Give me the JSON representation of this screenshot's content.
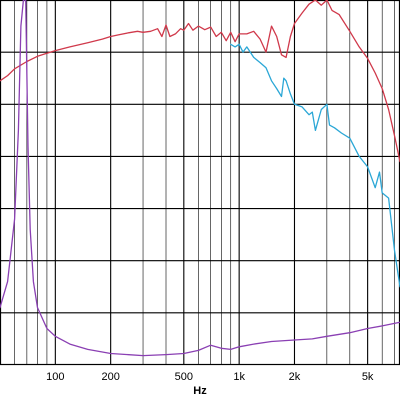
{
  "chart_data": {
    "type": "line",
    "title": "",
    "xlabel": "Hz",
    "ylabel": "",
    "x_scale": "log",
    "xlim": [
      50,
      7500
    ],
    "ylim": [
      0,
      7
    ],
    "grid": true,
    "x_ticks": [
      {
        "value": 100,
        "label": "100"
      },
      {
        "value": 200,
        "label": "200"
      },
      {
        "value": 500,
        "label": "500"
      },
      {
        "value": 1000,
        "label": "1k"
      },
      {
        "value": 2000,
        "label": "2k"
      },
      {
        "value": 5000,
        "label": "5k"
      }
    ],
    "minor_x_grid": [
      60,
      70,
      80,
      90,
      300,
      400,
      600,
      700,
      800,
      900,
      3000,
      4000,
      6000,
      7000
    ],
    "y_grid": [
      1,
      2,
      3,
      4,
      5,
      6
    ],
    "series": [
      {
        "color": "#d0394b",
        "points": [
          [
            50,
            5.45
          ],
          [
            55,
            5.55
          ],
          [
            60,
            5.68
          ],
          [
            70,
            5.82
          ],
          [
            80,
            5.92
          ],
          [
            90,
            5.98
          ],
          [
            100,
            6.03
          ],
          [
            120,
            6.1
          ],
          [
            150,
            6.18
          ],
          [
            180,
            6.25
          ],
          [
            200,
            6.3
          ],
          [
            220,
            6.33
          ],
          [
            250,
            6.37
          ],
          [
            280,
            6.4
          ],
          [
            300,
            6.38
          ],
          [
            330,
            6.4
          ],
          [
            360,
            6.45
          ],
          [
            380,
            6.3
          ],
          [
            400,
            6.52
          ],
          [
            420,
            6.3
          ],
          [
            450,
            6.35
          ],
          [
            480,
            6.45
          ],
          [
            500,
            6.42
          ],
          [
            530,
            6.55
          ],
          [
            560,
            6.42
          ],
          [
            600,
            6.5
          ],
          [
            650,
            6.43
          ],
          [
            700,
            6.48
          ],
          [
            750,
            6.3
          ],
          [
            800,
            6.38
          ],
          [
            850,
            6.22
          ],
          [
            900,
            6.38
          ],
          [
            950,
            6.2
          ],
          [
            1000,
            6.35
          ],
          [
            1100,
            6.35
          ],
          [
            1200,
            6.4
          ],
          [
            1300,
            6.25
          ],
          [
            1400,
            6.0
          ],
          [
            1500,
            6.5
          ],
          [
            1600,
            6.3
          ],
          [
            1700,
            5.95
          ],
          [
            1800,
            5.9
          ],
          [
            1900,
            6.3
          ],
          [
            2000,
            6.55
          ],
          [
            2200,
            6.75
          ],
          [
            2400,
            6.92
          ],
          [
            2600,
            7.0
          ],
          [
            2800,
            6.9
          ],
          [
            2900,
            6.95
          ],
          [
            3000,
            7.0
          ],
          [
            3200,
            6.8
          ],
          [
            3500,
            6.72
          ],
          [
            4000,
            6.4
          ],
          [
            4500,
            6.1
          ],
          [
            5000,
            5.88
          ],
          [
            5500,
            5.6
          ],
          [
            6000,
            5.3
          ],
          [
            6500,
            4.9
          ],
          [
            7000,
            4.4
          ],
          [
            7500,
            3.9
          ]
        ]
      },
      {
        "color": "#2ba7d6",
        "points": [
          [
            900,
            6.15
          ],
          [
            950,
            6.1
          ],
          [
            1000,
            6.15
          ],
          [
            1050,
            6.0
          ],
          [
            1100,
            6.1
          ],
          [
            1200,
            5.9
          ],
          [
            1300,
            5.8
          ],
          [
            1400,
            5.7
          ],
          [
            1500,
            5.45
          ],
          [
            1600,
            5.3
          ],
          [
            1700,
            5.15
          ],
          [
            1750,
            5.5
          ],
          [
            1800,
            5.45
          ],
          [
            1900,
            5.2
          ],
          [
            2000,
            5.0
          ],
          [
            2200,
            4.95
          ],
          [
            2400,
            4.8
          ],
          [
            2500,
            4.85
          ],
          [
            2600,
            4.5
          ],
          [
            2800,
            4.9
          ],
          [
            3000,
            5.0
          ],
          [
            3100,
            4.6
          ],
          [
            3300,
            4.55
          ],
          [
            3600,
            4.45
          ],
          [
            4000,
            4.35
          ],
          [
            4500,
            4.0
          ],
          [
            5000,
            3.8
          ],
          [
            5500,
            3.4
          ],
          [
            5800,
            3.7
          ],
          [
            6000,
            3.3
          ],
          [
            6500,
            3.2
          ],
          [
            7000,
            2.2
          ],
          [
            7500,
            1.5
          ]
        ]
      },
      {
        "color": "#8a3fb3",
        "points": [
          [
            50,
            1.1
          ],
          [
            55,
            1.6
          ],
          [
            60,
            2.8
          ],
          [
            63,
            4.5
          ],
          [
            65,
            6.5
          ],
          [
            67,
            7.0
          ],
          [
            69,
            7.0
          ],
          [
            71,
            4.2
          ],
          [
            73,
            2.6
          ],
          [
            76,
            1.6
          ],
          [
            80,
            1.1
          ],
          [
            90,
            0.7
          ],
          [
            100,
            0.55
          ],
          [
            120,
            0.4
          ],
          [
            150,
            0.3
          ],
          [
            200,
            0.22
          ],
          [
            300,
            0.18
          ],
          [
            400,
            0.2
          ],
          [
            500,
            0.22
          ],
          [
            600,
            0.28
          ],
          [
            700,
            0.38
          ],
          [
            800,
            0.32
          ],
          [
            900,
            0.3
          ],
          [
            1000,
            0.35
          ],
          [
            1200,
            0.4
          ],
          [
            1500,
            0.45
          ],
          [
            2000,
            0.48
          ],
          [
            2500,
            0.5
          ],
          [
            3000,
            0.55
          ],
          [
            4000,
            0.62
          ],
          [
            5000,
            0.7
          ],
          [
            6000,
            0.75
          ],
          [
            7500,
            0.82
          ]
        ]
      }
    ]
  }
}
